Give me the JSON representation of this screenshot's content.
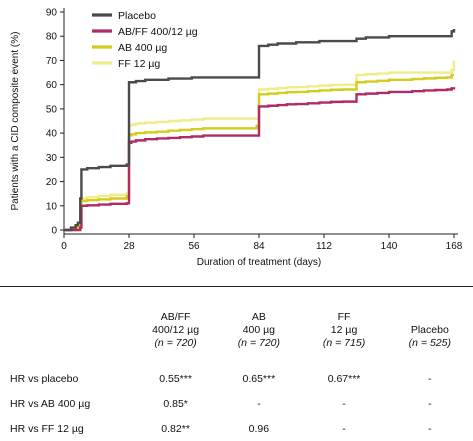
{
  "chart_data": {
    "type": "line",
    "line_shape": "step",
    "xlabel": "Duration of treatment (days)",
    "ylabel": "Patients with a CID composite event (%)",
    "xlim": [
      0,
      168
    ],
    "ylim": [
      0,
      90
    ],
    "xticks": [
      0,
      28,
      56,
      84,
      112,
      140,
      168
    ],
    "yticks": [
      0,
      10,
      20,
      30,
      40,
      50,
      60,
      70,
      80,
      90
    ],
    "grid": false,
    "legend_position": "top-left",
    "series": [
      {
        "name": "Placebo",
        "color": "#4a4a4a",
        "x": [
          1,
          2,
          3,
          4,
          5,
          6,
          7,
          7.5,
          10,
          15,
          20,
          27,
          28,
          29,
          31,
          35,
          40,
          45,
          50,
          55,
          60,
          65,
          70,
          75,
          80,
          83,
          84,
          85,
          88,
          92,
          96,
          100,
          105,
          110,
          115,
          120,
          124,
          126,
          127,
          130,
          135,
          140,
          145,
          150,
          155,
          160,
          165,
          166,
          167,
          168
        ],
        "y": [
          0,
          0,
          1,
          1,
          2,
          3,
          13,
          25,
          25.5,
          26,
          26.5,
          27,
          61,
          61,
          61.5,
          62,
          62,
          62.5,
          62.5,
          63,
          63,
          63,
          63,
          63,
          63,
          63,
          76,
          76,
          76.5,
          77,
          77,
          77.5,
          77.5,
          78,
          78,
          78,
          78,
          79,
          79,
          79.5,
          79.5,
          80,
          80,
          80,
          80,
          80,
          80,
          80,
          82,
          83
        ]
      },
      {
        "name": "AB/FF 400/12 µg",
        "color": "#b02a68",
        "x": [
          1,
          2,
          3,
          4,
          5,
          6,
          7,
          7.5,
          10,
          15,
          20,
          27,
          28,
          29,
          31,
          35,
          40,
          45,
          50,
          55,
          60,
          65,
          70,
          75,
          80,
          83,
          84,
          85,
          88,
          92,
          96,
          100,
          105,
          110,
          115,
          120,
          124,
          126,
          127,
          130,
          135,
          140,
          145,
          150,
          155,
          160,
          165,
          166,
          167,
          168
        ],
        "y": [
          0,
          0,
          0,
          0,
          0,
          0,
          1,
          10,
          10.2,
          10.5,
          10.8,
          11,
          36,
          36.5,
          37,
          37.5,
          37.8,
          38,
          38.3,
          38.6,
          39,
          39,
          39,
          39,
          39,
          39,
          51,
          51,
          51.3,
          51.6,
          51.9,
          52,
          52.3,
          52.6,
          52.9,
          53,
          53,
          56,
          56,
          56.3,
          56.6,
          57,
          57,
          57.3,
          57.6,
          57.8,
          58,
          58,
          58.5,
          59
        ]
      },
      {
        "name": "AB 400 µg",
        "color": "#d4cc1e",
        "x": [
          1,
          2,
          3,
          4,
          5,
          6,
          7,
          7.5,
          10,
          15,
          20,
          27,
          28,
          29,
          31,
          35,
          40,
          45,
          50,
          55,
          60,
          65,
          70,
          75,
          80,
          83,
          84,
          85,
          88,
          92,
          96,
          100,
          105,
          110,
          115,
          120,
          124,
          126,
          127,
          130,
          135,
          140,
          145,
          150,
          155,
          160,
          165,
          166,
          167,
          168
        ],
        "y": [
          0,
          0,
          0,
          0,
          1,
          1,
          2,
          12,
          12.3,
          12.6,
          13,
          14,
          39,
          39.5,
          40,
          40.3,
          40.6,
          41,
          41.3,
          41.6,
          42,
          42,
          42,
          42,
          42,
          43,
          56,
          56,
          56.3,
          56.6,
          56.9,
          57,
          57.3,
          57.6,
          57.9,
          58,
          58,
          61,
          61,
          61.3,
          61.6,
          62,
          62,
          62.3,
          62.6,
          62.8,
          63,
          63,
          64,
          64
        ]
      },
      {
        "name": "FF 12 µg",
        "color": "#f0ec8c",
        "x": [
          1,
          2,
          3,
          4,
          5,
          6,
          7,
          7.5,
          10,
          15,
          20,
          27,
          28,
          29,
          31,
          35,
          40,
          45,
          50,
          55,
          60,
          65,
          70,
          75,
          80,
          83,
          84,
          85,
          88,
          92,
          96,
          100,
          105,
          110,
          115,
          120,
          124,
          126,
          127,
          130,
          135,
          140,
          145,
          150,
          155,
          160,
          165,
          166,
          167,
          168
        ],
        "y": [
          0,
          0,
          1,
          1,
          1,
          2,
          3,
          13,
          13.5,
          14,
          14.5,
          15,
          43,
          43.5,
          44,
          44.3,
          44.6,
          45,
          45.3,
          45.6,
          46,
          46,
          46,
          46,
          46,
          46,
          58,
          58,
          58.3,
          58.6,
          58.9,
          59,
          59.3,
          59.6,
          59.9,
          60,
          60,
          64,
          64,
          64.3,
          64.6,
          65,
          65,
          65,
          65,
          65,
          65,
          65,
          66,
          70
        ]
      }
    ]
  },
  "table": {
    "headers": [
      {
        "line1": "AB/FF",
        "line2": "400/12 µg",
        "line3": "(n = 720)"
      },
      {
        "line1": "AB",
        "line2": "400 µg",
        "line3": "(n = 720)"
      },
      {
        "line1": "FF",
        "line2": "12 µg",
        "line3": "(n = 715)"
      },
      {
        "line1": "Placebo",
        "line2": "(n = 525)"
      }
    ],
    "rows": [
      {
        "label": "HR vs placebo",
        "values": [
          "0.55***",
          "0.65***",
          "0.67***",
          "-"
        ]
      },
      {
        "label": "HR vs AB 400 µg",
        "values": [
          "0.85*",
          "-",
          "-",
          "-"
        ]
      },
      {
        "label": "HR vs FF 12 µg",
        "values": [
          "0.82**",
          "0.96",
          "-",
          "-"
        ]
      }
    ]
  }
}
